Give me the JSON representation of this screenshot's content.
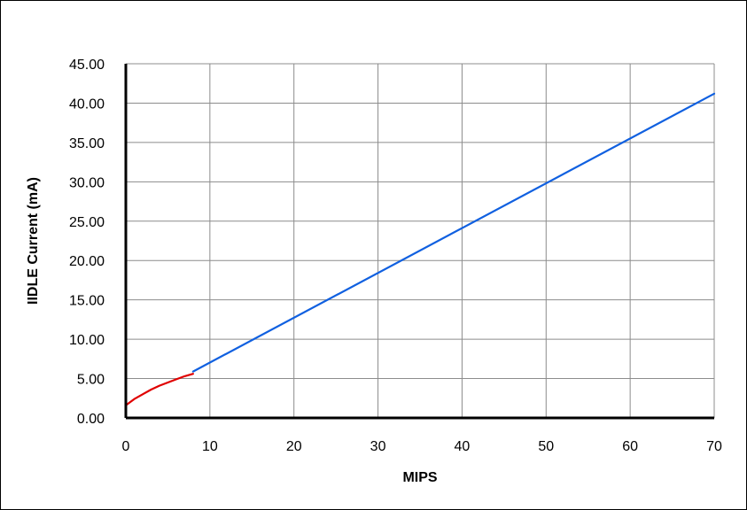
{
  "chart_data": {
    "type": "line",
    "title": "",
    "xlabel": "MIPS",
    "ylabel": "IIDLE Current (mA)",
    "xlim": [
      0,
      70
    ],
    "ylim": [
      0,
      45
    ],
    "x_ticks": [
      "0",
      "10",
      "20",
      "30",
      "40",
      "50",
      "60",
      "70"
    ],
    "y_ticks": [
      "0.00",
      "5.00",
      "10.00",
      "15.00",
      "20.00",
      "25.00",
      "30.00",
      "35.00",
      "40.00",
      "45.00"
    ],
    "grid": true,
    "legend": "none",
    "series": [
      {
        "color": "#e00000",
        "points": [
          [
            0,
            1.6
          ],
          [
            1,
            2.4
          ],
          [
            2,
            3.0
          ],
          [
            3,
            3.6
          ],
          [
            4,
            4.1
          ],
          [
            5,
            4.5
          ],
          [
            6,
            4.9
          ],
          [
            7,
            5.3
          ],
          [
            8,
            5.6
          ]
        ]
      },
      {
        "color": "#1060e0",
        "points": [
          [
            8,
            5.9
          ],
          [
            70,
            41.2
          ]
        ]
      }
    ]
  }
}
